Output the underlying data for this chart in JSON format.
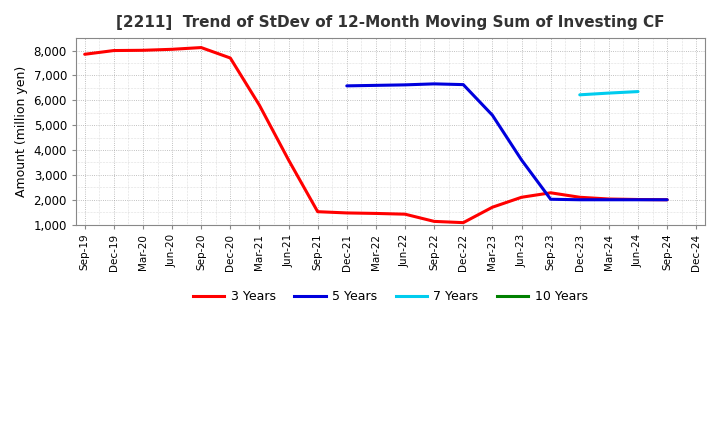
{
  "title": "[2211]  Trend of StDev of 12-Month Moving Sum of Investing CF",
  "ylabel": "Amount (million yen)",
  "background_color": "#ffffff",
  "grid_color": "#999999",
  "series": {
    "3 Years": {
      "color": "#ff0000",
      "data": [
        [
          "Sep-19",
          7850
        ],
        [
          "Dec-19",
          8000
        ],
        [
          "Mar-20",
          8010
        ],
        [
          "Jun-20",
          8050
        ],
        [
          "Sep-20",
          8120
        ],
        [
          "Dec-20",
          7700
        ],
        [
          "Mar-21",
          5800
        ],
        [
          "Jun-21",
          3600
        ],
        [
          "Sep-21",
          1520
        ],
        [
          "Dec-21",
          1470
        ],
        [
          "Mar-22",
          1450
        ],
        [
          "Jun-22",
          1420
        ],
        [
          "Sep-22",
          1130
        ],
        [
          "Dec-22",
          1080
        ],
        [
          "Mar-23",
          1700
        ],
        [
          "Jun-23",
          2100
        ],
        [
          "Sep-23",
          2280
        ],
        [
          "Dec-23",
          2100
        ],
        [
          "Mar-24",
          2030
        ],
        [
          "Jun-24",
          2010
        ],
        [
          "Sep-24",
          2000
        ]
      ]
    },
    "5 Years": {
      "color": "#0000dd",
      "data": [
        [
          "Dec-21",
          6580
        ],
        [
          "Mar-22",
          6600
        ],
        [
          "Jun-22",
          6620
        ],
        [
          "Sep-22",
          6660
        ],
        [
          "Dec-22",
          6630
        ],
        [
          "Mar-23",
          5400
        ],
        [
          "Jun-23",
          3600
        ],
        [
          "Sep-23",
          2020
        ],
        [
          "Dec-23",
          2000
        ],
        [
          "Mar-24",
          2000
        ],
        [
          "Jun-24",
          2000
        ],
        [
          "Sep-24",
          2000
        ]
      ]
    },
    "7 Years": {
      "color": "#00ccee",
      "data": [
        [
          "Dec-23",
          6220
        ],
        [
          "Mar-24",
          6290
        ],
        [
          "Jun-24",
          6350
        ]
      ]
    },
    "10 Years": {
      "color": "#008000",
      "data": []
    }
  },
  "x_labels": [
    "Sep-19",
    "Dec-19",
    "Mar-20",
    "Jun-20",
    "Sep-20",
    "Dec-20",
    "Mar-21",
    "Jun-21",
    "Sep-21",
    "Dec-21",
    "Mar-22",
    "Jun-22",
    "Sep-22",
    "Dec-22",
    "Mar-23",
    "Jun-23",
    "Sep-23",
    "Dec-23",
    "Mar-24",
    "Jun-24",
    "Sep-24",
    "Dec-24"
  ],
  "ylim": [
    1000,
    8500
  ],
  "yticks": [
    1000,
    2000,
    3000,
    4000,
    5000,
    6000,
    7000,
    8000
  ],
  "legend_labels": [
    "3 Years",
    "5 Years",
    "7 Years",
    "10 Years"
  ],
  "legend_colors": [
    "#ff0000",
    "#0000dd",
    "#00ccee",
    "#008000"
  ]
}
